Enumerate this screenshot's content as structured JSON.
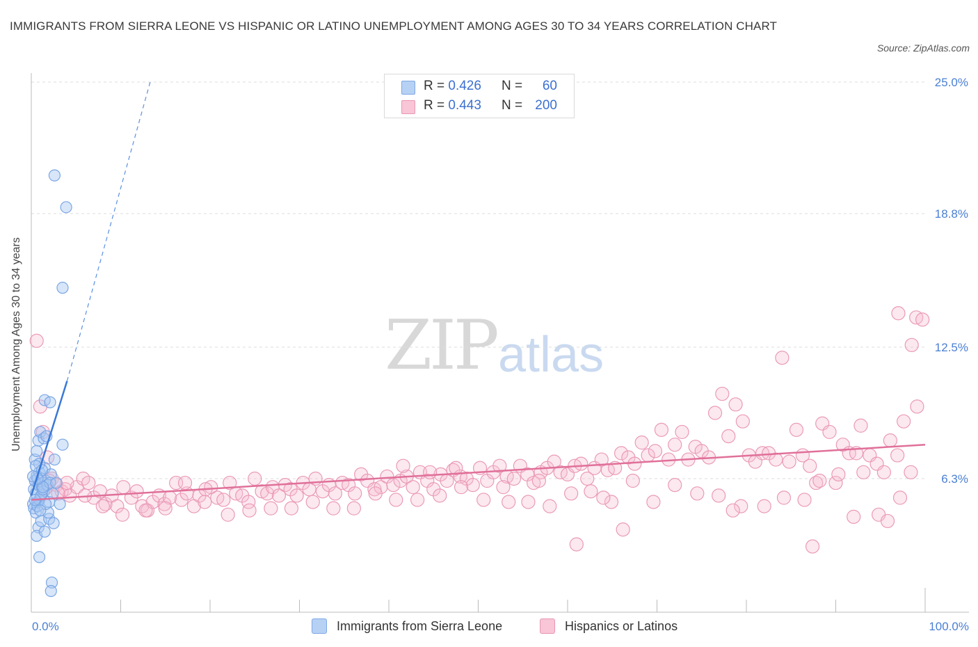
{
  "title": "IMMIGRANTS FROM SIERRA LEONE VS HISPANIC OR LATINO UNEMPLOYMENT AMONG AGES 30 TO 34 YEARS CORRELATION CHART",
  "source": "Source: ZipAtlas.com",
  "watermark": {
    "zip": "ZIP",
    "atlas": "atlas"
  },
  "legend": {
    "series1": {
      "r_label": "R = ",
      "r_value": "0.426",
      "n_label": "N = ",
      "n_value": "60"
    },
    "series2": {
      "r_label": "R = ",
      "r_value": "0.443",
      "n_label": "N = ",
      "n_value": "200"
    }
  },
  "colors": {
    "blue": "#4a84d8",
    "blue_fill": "#a9c8f2",
    "pink": "#e07099",
    "pink_fill": "#f6bcd0",
    "tick": "#4a7fd4"
  },
  "chart_data": {
    "type": "scatter",
    "xlabel": "",
    "ylabel": "Unemployment Among Ages 30 to 34 years",
    "xlim": [
      0,
      100
    ],
    "ylim": [
      0,
      25
    ],
    "x_tick_labels": [
      "0.0%",
      "100.0%"
    ],
    "y_ticks": [
      6.3,
      12.5,
      18.8,
      25.0
    ],
    "y_tick_labels": [
      "6.3%",
      "12.5%",
      "18.8%",
      "25.0%"
    ],
    "series": [
      {
        "name": "Immigrants from Sierra Leone",
        "trend": {
          "x0": 0,
          "y0": 5.5,
          "x1": 4.0,
          "y1": 10.9,
          "dashed_to_x": 13.3,
          "dashed_to_y": 25.0
        },
        "points": [
          [
            0.2,
            5.1
          ],
          [
            0.3,
            5.8
          ],
          [
            0.4,
            6.2
          ],
          [
            0.5,
            5.6
          ],
          [
            0.6,
            6.4
          ],
          [
            0.7,
            5.2
          ],
          [
            0.8,
            6.0
          ],
          [
            0.9,
            6.6
          ],
          [
            1.0,
            5.4
          ],
          [
            1.1,
            6.3
          ],
          [
            1.2,
            5.9
          ],
          [
            1.3,
            6.1
          ],
          [
            1.4,
            5.7
          ],
          [
            1.5,
            6.8
          ],
          [
            0.3,
            4.9
          ],
          [
            0.5,
            4.7
          ],
          [
            0.7,
            5.0
          ],
          [
            0.9,
            5.3
          ],
          [
            1.1,
            5.5
          ],
          [
            1.3,
            5.8
          ],
          [
            1.6,
            6.2
          ],
          [
            1.8,
            6.0
          ],
          [
            2.0,
            5.2
          ],
          [
            2.2,
            6.5
          ],
          [
            2.4,
            5.6
          ],
          [
            0.4,
            7.2
          ],
          [
            0.6,
            7.6
          ],
          [
            0.8,
            8.1
          ],
          [
            1.0,
            8.5
          ],
          [
            1.4,
            8.2
          ],
          [
            1.7,
            8.3
          ],
          [
            2.1,
            6.1
          ],
          [
            2.6,
            7.2
          ],
          [
            0.9,
            7.0
          ],
          [
            0.5,
            6.9
          ],
          [
            1.2,
            6.7
          ],
          [
            1.5,
            10.0
          ],
          [
            2.1,
            9.9
          ],
          [
            3.5,
            7.9
          ],
          [
            0.8,
            4.0
          ],
          [
            1.1,
            4.3
          ],
          [
            0.6,
            3.6
          ],
          [
            1.5,
            3.8
          ],
          [
            2.0,
            4.4
          ],
          [
            2.5,
            4.2
          ],
          [
            0.9,
            2.6
          ],
          [
            2.3,
            1.4
          ],
          [
            2.2,
            1.0
          ],
          [
            2.6,
            20.6
          ],
          [
            3.9,
            19.1
          ],
          [
            3.5,
            15.3
          ],
          [
            1.3,
            5.9
          ],
          [
            1.9,
            4.7
          ],
          [
            0.7,
            6.3
          ],
          [
            3.2,
            5.1
          ],
          [
            0.4,
            5.3
          ],
          [
            1.6,
            5.1
          ],
          [
            2.8,
            6.1
          ],
          [
            0.2,
            6.4
          ],
          [
            1.0,
            4.8
          ]
        ]
      },
      {
        "name": "Hispanics or Latinos",
        "trend": {
          "x0": 0,
          "y0": 5.3,
          "x1": 100,
          "y1": 7.9
        },
        "points": [
          [
            0.6,
            12.8
          ],
          [
            1.0,
            9.7
          ],
          [
            1.3,
            8.5
          ],
          [
            1.8,
            7.3
          ],
          [
            2.3,
            6.3
          ],
          [
            2.8,
            6.0
          ],
          [
            3.4,
            5.7
          ],
          [
            3.8,
            5.8
          ],
          [
            4.3,
            5.5
          ],
          [
            5.1,
            5.9
          ],
          [
            5.8,
            6.3
          ],
          [
            6.4,
            6.1
          ],
          [
            7.0,
            5.4
          ],
          [
            7.7,
            5.7
          ],
          [
            8.3,
            5.1
          ],
          [
            9.0,
            5.5
          ],
          [
            9.6,
            5.0
          ],
          [
            10.3,
            5.9
          ],
          [
            11.2,
            5.4
          ],
          [
            11.8,
            5.7
          ],
          [
            12.4,
            5.0
          ],
          [
            13.0,
            4.8
          ],
          [
            13.6,
            5.2
          ],
          [
            14.3,
            5.5
          ],
          [
            14.9,
            5.1
          ],
          [
            15.5,
            5.4
          ],
          [
            16.2,
            6.1
          ],
          [
            16.8,
            5.3
          ],
          [
            17.4,
            5.6
          ],
          [
            18.2,
            5.0
          ],
          [
            18.8,
            5.5
          ],
          [
            19.4,
            5.2
          ],
          [
            20.1,
            5.9
          ],
          [
            20.8,
            5.4
          ],
          [
            21.5,
            5.3
          ],
          [
            22.2,
            6.1
          ],
          [
            22.9,
            5.6
          ],
          [
            23.6,
            5.5
          ],
          [
            24.3,
            5.2
          ],
          [
            25.0,
            6.3
          ],
          [
            25.8,
            5.7
          ],
          [
            26.4,
            5.6
          ],
          [
            27.0,
            5.9
          ],
          [
            27.7,
            5.5
          ],
          [
            28.4,
            6.0
          ],
          [
            29.0,
            5.8
          ],
          [
            29.7,
            5.5
          ],
          [
            30.4,
            6.1
          ],
          [
            31.1,
            5.8
          ],
          [
            31.8,
            6.3
          ],
          [
            32.6,
            5.7
          ],
          [
            33.3,
            6.0
          ],
          [
            34.0,
            5.6
          ],
          [
            34.8,
            6.1
          ],
          [
            35.5,
            6.0
          ],
          [
            36.2,
            5.6
          ],
          [
            36.9,
            6.5
          ],
          [
            37.6,
            6.2
          ],
          [
            38.4,
            5.8
          ],
          [
            39.1,
            5.9
          ],
          [
            39.8,
            6.4
          ],
          [
            40.5,
            6.0
          ],
          [
            41.3,
            6.2
          ],
          [
            42.0,
            6.4
          ],
          [
            42.7,
            5.9
          ],
          [
            43.5,
            6.6
          ],
          [
            44.3,
            6.2
          ],
          [
            45.0,
            5.8
          ],
          [
            45.8,
            6.5
          ],
          [
            46.5,
            6.2
          ],
          [
            47.2,
            6.7
          ],
          [
            48.0,
            6.4
          ],
          [
            48.7,
            6.3
          ],
          [
            49.4,
            6.0
          ],
          [
            50.2,
            6.8
          ],
          [
            51.0,
            6.2
          ],
          [
            51.7,
            6.6
          ],
          [
            52.4,
            6.9
          ],
          [
            53.2,
            6.4
          ],
          [
            54.0,
            6.3
          ],
          [
            54.7,
            6.9
          ],
          [
            55.5,
            6.5
          ],
          [
            56.2,
            6.1
          ],
          [
            57.0,
            6.6
          ],
          [
            57.7,
            6.8
          ],
          [
            58.5,
            7.1
          ],
          [
            59.2,
            6.6
          ],
          [
            60.0,
            6.5
          ],
          [
            60.8,
            6.9
          ],
          [
            61.5,
            7.0
          ],
          [
            62.2,
            6.3
          ],
          [
            63.0,
            6.8
          ],
          [
            63.8,
            7.2
          ],
          [
            64.5,
            6.7
          ],
          [
            65.3,
            6.8
          ],
          [
            66.0,
            7.5
          ],
          [
            66.8,
            7.3
          ],
          [
            67.5,
            7.0
          ],
          [
            68.3,
            8.0
          ],
          [
            69.0,
            7.4
          ],
          [
            69.8,
            7.6
          ],
          [
            70.5,
            8.6
          ],
          [
            71.3,
            7.2
          ],
          [
            72.0,
            7.9
          ],
          [
            72.8,
            8.5
          ],
          [
            73.5,
            7.2
          ],
          [
            74.3,
            7.8
          ],
          [
            75.0,
            7.6
          ],
          [
            75.8,
            7.3
          ],
          [
            76.5,
            9.4
          ],
          [
            77.3,
            10.3
          ],
          [
            78.0,
            8.3
          ],
          [
            78.8,
            9.8
          ],
          [
            79.6,
            9.0
          ],
          [
            80.3,
            7.4
          ],
          [
            81.0,
            7.1
          ],
          [
            81.8,
            7.5
          ],
          [
            82.5,
            7.5
          ],
          [
            83.3,
            7.2
          ],
          [
            84.0,
            12.0
          ],
          [
            84.8,
            7.1
          ],
          [
            85.6,
            8.6
          ],
          [
            86.3,
            7.4
          ],
          [
            87.1,
            6.9
          ],
          [
            87.8,
            6.1
          ],
          [
            88.5,
            8.9
          ],
          [
            89.3,
            8.5
          ],
          [
            90.0,
            6.1
          ],
          [
            90.8,
            7.9
          ],
          [
            91.5,
            7.5
          ],
          [
            92.3,
            7.5
          ],
          [
            93.1,
            6.6
          ],
          [
            93.8,
            7.4
          ],
          [
            94.6,
            7.0
          ],
          [
            95.4,
            6.6
          ],
          [
            96.1,
            8.1
          ],
          [
            96.9,
            7.4
          ],
          [
            97.6,
            9.0
          ],
          [
            98.4,
            6.6
          ],
          [
            99.1,
            9.7
          ],
          [
            97.0,
            14.1
          ],
          [
            99.0,
            13.9
          ],
          [
            98.5,
            12.6
          ],
          [
            92.8,
            8.8
          ],
          [
            90.3,
            6.5
          ],
          [
            88.2,
            6.2
          ],
          [
            86.5,
            5.3
          ],
          [
            84.2,
            5.4
          ],
          [
            82.0,
            5.0
          ],
          [
            79.4,
            5.0
          ],
          [
            76.9,
            5.5
          ],
          [
            74.5,
            5.6
          ],
          [
            72.0,
            6.0
          ],
          [
            69.6,
            5.2
          ],
          [
            67.3,
            6.2
          ],
          [
            64.9,
            5.2
          ],
          [
            62.6,
            5.7
          ],
          [
            60.4,
            5.6
          ],
          [
            58.0,
            5.0
          ],
          [
            55.6,
            5.2
          ],
          [
            53.4,
            5.2
          ],
          [
            50.6,
            5.3
          ],
          [
            48.1,
            5.9
          ],
          [
            45.7,
            5.5
          ],
          [
            43.2,
            5.3
          ],
          [
            40.8,
            5.3
          ],
          [
            38.5,
            5.6
          ],
          [
            36.1,
            4.9
          ],
          [
            33.8,
            4.9
          ],
          [
            31.5,
            5.2
          ],
          [
            29.1,
            4.9
          ],
          [
            26.8,
            4.9
          ],
          [
            24.4,
            4.8
          ],
          [
            22.0,
            4.6
          ],
          [
            19.5,
            5.8
          ],
          [
            17.2,
            6.1
          ],
          [
            15.0,
            4.9
          ],
          [
            12.8,
            4.8
          ],
          [
            10.2,
            4.6
          ],
          [
            8.0,
            5.0
          ],
          [
            6.0,
            5.5
          ],
          [
            4.0,
            6.1
          ],
          [
            3.0,
            5.6
          ],
          [
            2.0,
            6.2
          ],
          [
            1.5,
            5.8
          ],
          [
            61.0,
            3.2
          ],
          [
            64.0,
            5.4
          ],
          [
            66.2,
            3.9
          ],
          [
            78.5,
            4.8
          ],
          [
            87.4,
            3.1
          ],
          [
            92.0,
            4.5
          ],
          [
            94.8,
            4.6
          ],
          [
            95.8,
            4.3
          ],
          [
            97.2,
            5.4
          ],
          [
            99.7,
            13.8
          ],
          [
            56.8,
            6.2
          ],
          [
            52.8,
            5.9
          ],
          [
            47.5,
            6.8
          ],
          [
            44.6,
            6.6
          ],
          [
            41.6,
            6.9
          ]
        ]
      }
    ]
  },
  "bottom_legend": {
    "item1": "Immigrants from Sierra Leone",
    "item2": "Hispanics or Latinos"
  }
}
